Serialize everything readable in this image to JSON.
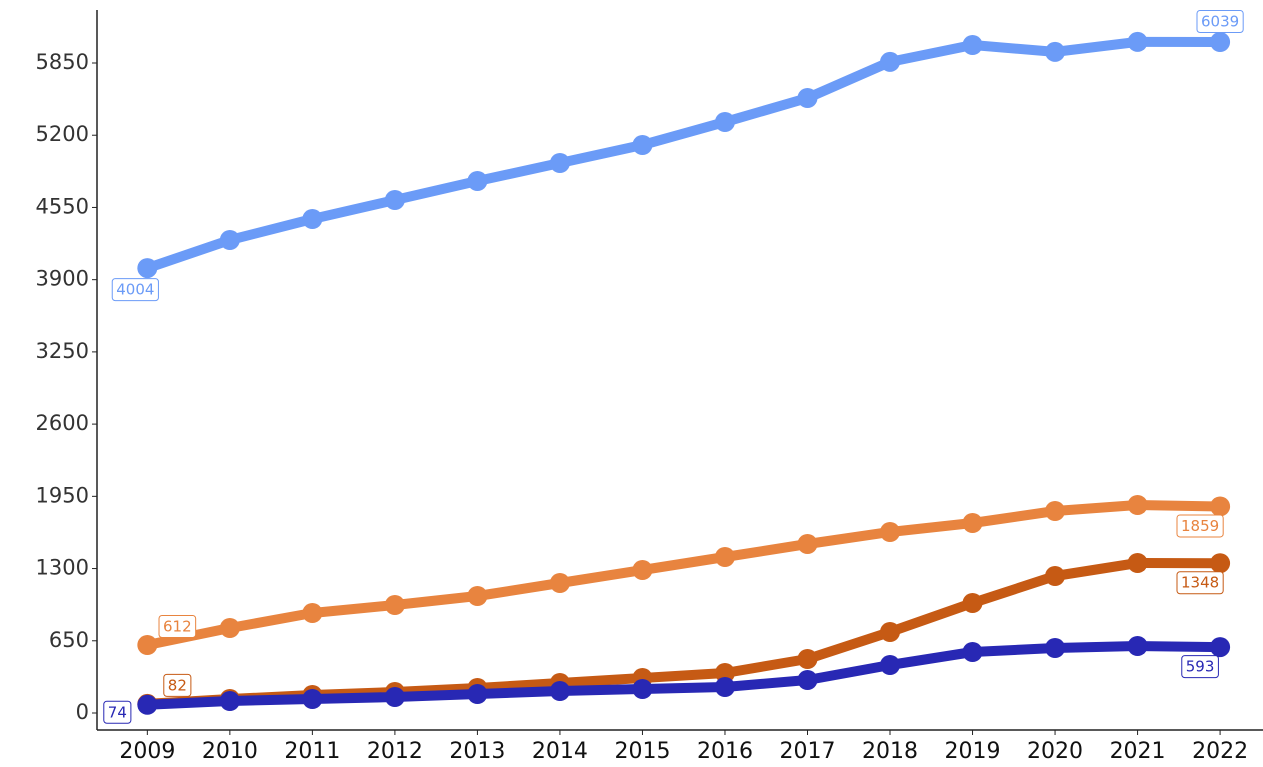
{
  "chart_data": {
    "type": "line",
    "x": [
      2009,
      2010,
      2011,
      2012,
      2013,
      2014,
      2015,
      2016,
      2017,
      2018,
      2019,
      2020,
      2021,
      2022
    ],
    "series": [
      {
        "color": "#6b9bf7",
        "values": [
          4004,
          4257,
          4446,
          4617,
          4788,
          4950,
          5112,
          5319,
          5535,
          5860,
          6012,
          5950,
          6040,
          6039
        ]
      },
      {
        "color": "#e8843f",
        "values": [
          612,
          765,
          900,
          972,
          1053,
          1170,
          1287,
          1404,
          1521,
          1629,
          1710,
          1818,
          1872,
          1859
        ]
      },
      {
        "color": "#c65a14",
        "values": [
          82,
          126,
          162,
          189,
          225,
          270,
          315,
          360,
          486,
          729,
          990,
          1233,
          1350,
          1348
        ]
      },
      {
        "color": "#2828b4",
        "values": [
          74,
          108,
          126,
          144,
          171,
          198,
          216,
          234,
          297,
          432,
          549,
          585,
          603,
          593
        ]
      }
    ],
    "xlim": [
      2008.39,
      2022.52
    ],
    "ylim": [
      -153,
      6327
    ],
    "yticks": [
      0,
      650,
      1300,
      1950,
      2600,
      3250,
      3900,
      4550,
      5200,
      5850
    ],
    "grid": false
  }
}
